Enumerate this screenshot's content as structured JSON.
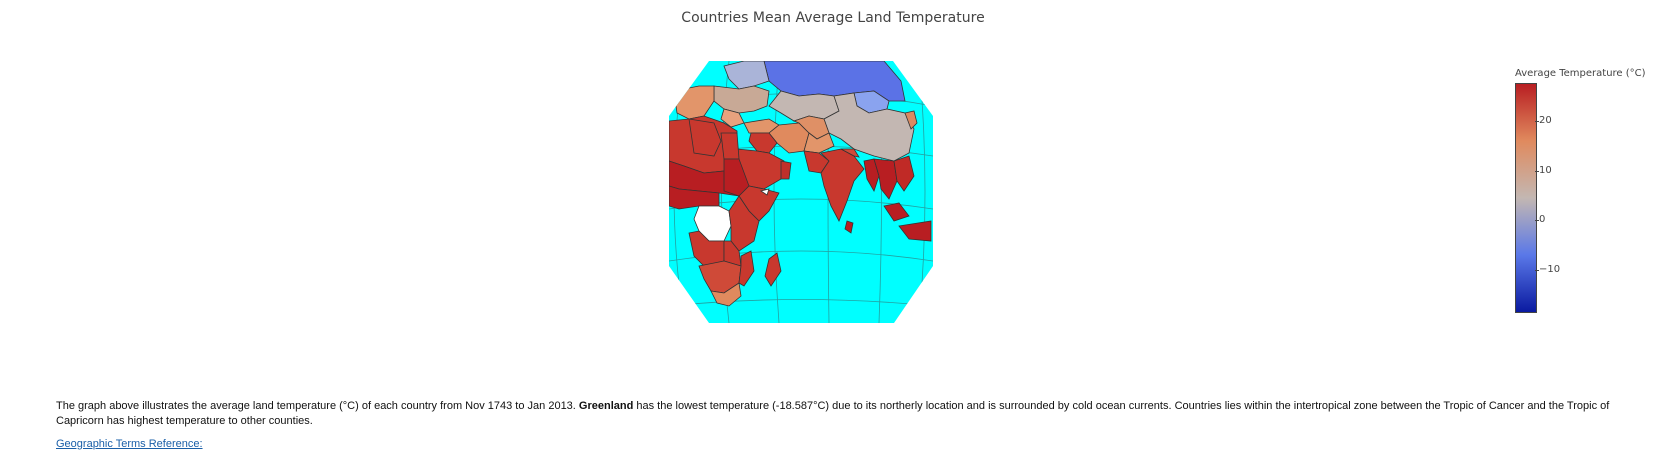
{
  "title": "Countries Mean Average Land Temperature",
  "colorbar": {
    "title": "Average Temperature (°C)",
    "ticks": [
      {
        "value": 20,
        "label": "20"
      },
      {
        "value": 10,
        "label": "10"
      },
      {
        "value": 0,
        "label": "0"
      },
      {
        "value": -10,
        "label": "−10"
      }
    ],
    "range": [
      -18.587,
      28
    ],
    "colorscale": [
      "#0a1aa0",
      "#5a78e8",
      "#c3b7b2",
      "#e08a5e",
      "#b81e22"
    ]
  },
  "map": {
    "projection": "orthographic",
    "ocean_color": "#00ffff",
    "no_data_color": "#ffffff",
    "border_color": "#333333",
    "grid_color": "#2b8a8a"
  },
  "caption": {
    "part1": "The graph above illustrates the average land temperature (°C) of each country from Nov 1743 to Jan 2013. ",
    "bold": "Greenland",
    "part2": " has the lowest temperature (-18.587°C) due to its northerly location and is surrounded by cold ocean currents. Countries lies within the intertropical zone between the Tropic of Cancer and the Tropic of Capricorn has highest temperature to other counties."
  },
  "link_text": "Geographic Terms Reference:"
}
